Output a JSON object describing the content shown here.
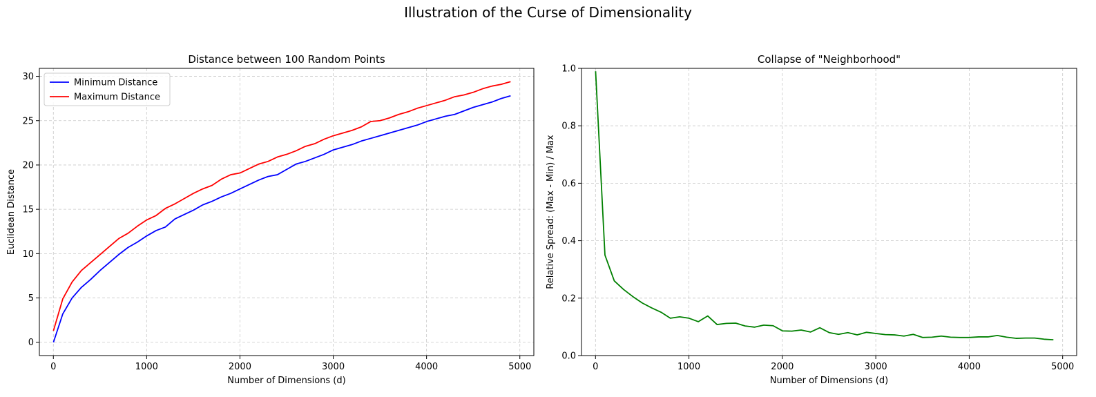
{
  "figure": {
    "suptitle": "Illustration of the Curse of Dimensionality"
  },
  "chart_data": [
    {
      "type": "line",
      "title": "Distance between 100 Random Points",
      "xlabel": "Number of Dimensions (d)",
      "ylabel": "Euclidean Distance",
      "xlim": [
        -150,
        5150
      ],
      "ylim": [
        -1.5,
        30.9
      ],
      "xticks": [
        0,
        1000,
        2000,
        3000,
        4000,
        5000
      ],
      "yticks": [
        0,
        5,
        10,
        15,
        20,
        25,
        30
      ],
      "grid": true,
      "legend": "upper left",
      "x": [
        1,
        101,
        201,
        301,
        401,
        501,
        601,
        701,
        801,
        901,
        1001,
        1101,
        1201,
        1301,
        1401,
        1501,
        1601,
        1701,
        1801,
        1901,
        2001,
        2101,
        2201,
        2301,
        2401,
        2501,
        2601,
        2701,
        2801,
        2901,
        3001,
        3101,
        3201,
        3301,
        3401,
        3501,
        3601,
        3701,
        3801,
        3901,
        4001,
        4101,
        4201,
        4301,
        4401,
        4501,
        4601,
        4701,
        4801,
        4901
      ],
      "series": [
        {
          "name": "Minimum Distance",
          "color": "#0000ff",
          "values": [
            0.0,
            3.2,
            5.0,
            6.2,
            7.1,
            8.1,
            9.0,
            9.9,
            10.7,
            11.3,
            12.0,
            12.6,
            13.0,
            13.9,
            14.4,
            14.9,
            15.5,
            15.9,
            16.4,
            16.8,
            17.3,
            17.8,
            18.3,
            18.7,
            18.9,
            19.5,
            20.1,
            20.4,
            20.8,
            21.2,
            21.7,
            22.0,
            22.3,
            22.7,
            23.0,
            23.3,
            23.6,
            23.9,
            24.2,
            24.5,
            24.9,
            25.2,
            25.5,
            25.7,
            26.1,
            26.5,
            26.8,
            27.1,
            27.5,
            27.8
          ]
        },
        {
          "name": "Maximum Distance",
          "color": "#ff0000",
          "values": [
            1.3,
            4.9,
            6.8,
            8.1,
            9.0,
            9.9,
            10.8,
            11.7,
            12.3,
            13.1,
            13.8,
            14.3,
            15.1,
            15.6,
            16.2,
            16.8,
            17.3,
            17.7,
            18.4,
            18.9,
            19.1,
            19.6,
            20.1,
            20.4,
            20.9,
            21.2,
            21.6,
            22.1,
            22.4,
            22.9,
            23.3,
            23.6,
            23.9,
            24.3,
            24.9,
            25.0,
            25.3,
            25.7,
            26.0,
            26.4,
            26.7,
            27.0,
            27.3,
            27.7,
            27.9,
            28.2,
            28.6,
            28.9,
            29.1,
            29.4
          ]
        }
      ]
    },
    {
      "type": "line",
      "title": "Collapse of \"Neighborhood\"",
      "xlabel": "Number of Dimensions (d)",
      "ylabel": "Relative Spread: (Max - Min) / Max",
      "xlim": [
        -150,
        5150
      ],
      "ylim": [
        0.0,
        1.0
      ],
      "xticks": [
        0,
        1000,
        2000,
        3000,
        4000,
        5000
      ],
      "yticks": [
        0.0,
        0.2,
        0.4,
        0.6,
        0.8,
        1.0
      ],
      "grid": true,
      "x": [
        1,
        101,
        201,
        301,
        401,
        501,
        601,
        701,
        801,
        901,
        1001,
        1101,
        1201,
        1301,
        1401,
        1501,
        1601,
        1701,
        1801,
        1901,
        2001,
        2101,
        2201,
        2301,
        2401,
        2501,
        2601,
        2701,
        2801,
        2901,
        3001,
        3101,
        3201,
        3301,
        3401,
        3501,
        3601,
        3701,
        3801,
        3901,
        4001,
        4101,
        4201,
        4301,
        4401,
        4501,
        4601,
        4701,
        4801,
        4901
      ],
      "series": [
        {
          "color": "#008000",
          "values": [
            0.99,
            0.35,
            0.26,
            0.23,
            0.205,
            0.183,
            0.166,
            0.151,
            0.13,
            0.135,
            0.13,
            0.118,
            0.138,
            0.108,
            0.112,
            0.113,
            0.103,
            0.099,
            0.106,
            0.104,
            0.086,
            0.085,
            0.089,
            0.082,
            0.097,
            0.08,
            0.074,
            0.08,
            0.072,
            0.081,
            0.077,
            0.073,
            0.072,
            0.068,
            0.074,
            0.063,
            0.064,
            0.068,
            0.064,
            0.063,
            0.063,
            0.065,
            0.065,
            0.07,
            0.064,
            0.06,
            0.061,
            0.061,
            0.057,
            0.055
          ]
        }
      ]
    }
  ]
}
